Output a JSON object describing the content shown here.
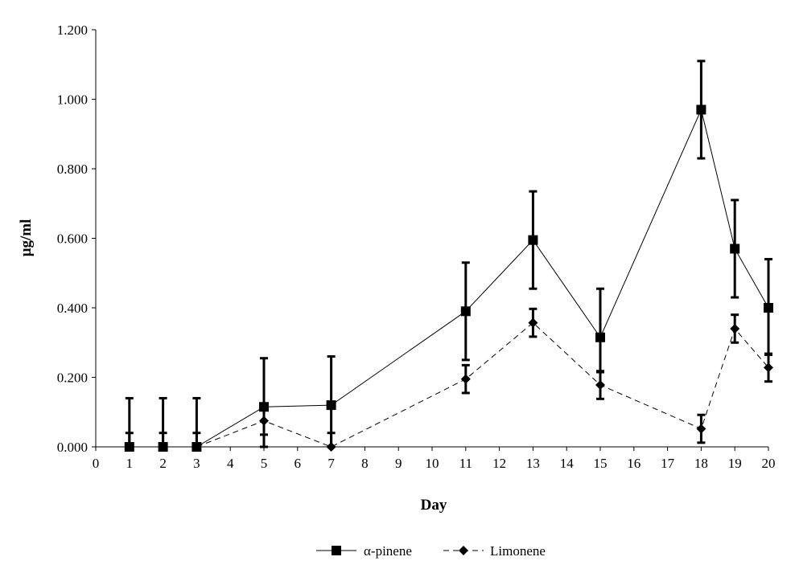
{
  "chart_data": {
    "type": "line",
    "xlabel": "Day",
    "ylabel": "µg/ml",
    "xlim": [
      0,
      20
    ],
    "ylim": [
      0,
      1.2
    ],
    "x_ticks": [
      "0",
      "1",
      "2",
      "3",
      "4",
      "5",
      "6",
      "7",
      "8",
      "9",
      "10",
      "11",
      "12",
      "13",
      "14",
      "15",
      "16",
      "17",
      "18",
      "19",
      "20"
    ],
    "y_ticks": [
      "0.000",
      "0.200",
      "0.400",
      "0.600",
      "0.800",
      "1.000",
      "1.200"
    ],
    "grid": false,
    "legend_position": "bottom",
    "series": [
      {
        "name": "α-pinene",
        "marker": "square",
        "line_style": "solid",
        "x": [
          1,
          2,
          3,
          5,
          7,
          11,
          13,
          15,
          18,
          19,
          20
        ],
        "y": [
          0.0,
          0.0,
          0.0,
          0.115,
          0.12,
          0.39,
          0.595,
          0.315,
          0.97,
          0.57,
          0.4
        ],
        "err_low": [
          0.0,
          0.0,
          0.0,
          0.115,
          0.12,
          0.14,
          0.14,
          0.1,
          0.14,
          0.14,
          0.135
        ],
        "err_high": [
          0.14,
          0.14,
          0.14,
          0.14,
          0.14,
          0.14,
          0.14,
          0.14,
          0.14,
          0.14,
          0.14
        ]
      },
      {
        "name": "Limonene",
        "marker": "diamond",
        "line_style": "dashed",
        "x": [
          1,
          2,
          3,
          5,
          7,
          11,
          13,
          15,
          18,
          19,
          20
        ],
        "y": [
          0.0,
          0.0,
          0.0,
          0.075,
          0.0,
          0.195,
          0.357,
          0.178,
          0.052,
          0.34,
          0.228
        ],
        "err_low": [
          0.0,
          0.0,
          0.0,
          0.04,
          0.0,
          0.04,
          0.04,
          0.04,
          0.04,
          0.04,
          0.04
        ],
        "err_high": [
          0.04,
          0.04,
          0.04,
          0.04,
          0.04,
          0.04,
          0.04,
          0.04,
          0.04,
          0.04,
          0.04
        ]
      }
    ]
  }
}
